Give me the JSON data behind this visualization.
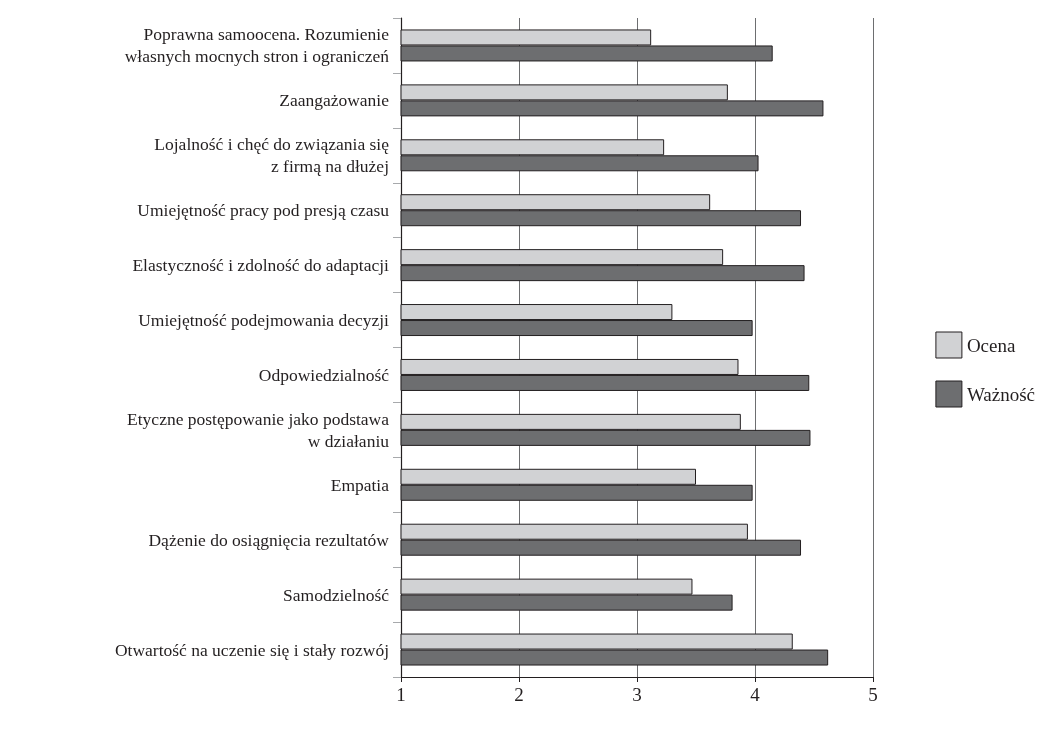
{
  "chart_data": {
    "type": "bar",
    "orientation": "horizontal",
    "categories": [
      "Poprawna samoocena. Rozumienie\nwłasnych mocnych stron i ograniczeń",
      "Zaangażowanie",
      "Lojalność i chęć do związania się\nz firmą na dłużej",
      "Umiejętność pracy pod presją czasu",
      "Elastyczność i zdolność do adaptacji",
      "Umiejętność podejmowania decyzji",
      "Odpowiedzialność",
      "Etyczne postępowanie jako podstawa\nw działaniu",
      "Empatia",
      "Dążenie do osiągnięcia rezultatów",
      "Samodzielność",
      "Otwartość na uczenie się i stały rozwój"
    ],
    "series": [
      {
        "name": "Ocena",
        "color": "#d1d2d4",
        "values": [
          3.12,
          3.77,
          3.23,
          3.62,
          3.73,
          3.3,
          3.86,
          3.88,
          3.5,
          3.94,
          3.47,
          4.32
        ]
      },
      {
        "name": "Ważność",
        "color": "#6d6e70",
        "values": [
          4.15,
          4.58,
          4.03,
          4.39,
          4.42,
          3.98,
          4.46,
          4.47,
          3.98,
          4.39,
          3.81,
          4.62
        ]
      }
    ],
    "xlim": [
      1,
      5
    ],
    "xticks": [
      1,
      2,
      3,
      4,
      5
    ],
    "grid": "x",
    "legend": "right"
  }
}
